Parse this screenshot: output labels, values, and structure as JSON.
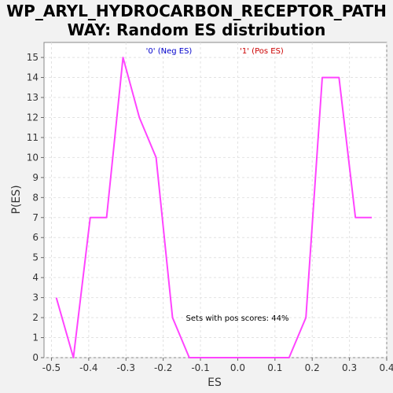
{
  "chart_data": {
    "type": "line",
    "title_line1": "WP_ARYL_HYDROCARBON_RECEPTOR_PATH",
    "title_line2": "WAY: Random ES distribution",
    "xlabel": "ES",
    "ylabel": "P(ES)",
    "xlim": [
      -0.52,
      0.4
    ],
    "ylim": [
      0,
      15.75
    ],
    "x_ticks": [
      -0.5,
      -0.4,
      -0.3,
      -0.2,
      -0.1,
      0.0,
      0.1,
      0.2,
      0.3,
      0.4
    ],
    "x_tick_labels": [
      "-0.5",
      "-0.4",
      "-0.3",
      "-0.2",
      "-0.1",
      "0.0",
      "0.1",
      "0.2",
      "0.3",
      "0.4"
    ],
    "y_ticks": [
      0,
      1,
      2,
      3,
      4,
      5,
      6,
      7,
      8,
      9,
      10,
      11,
      12,
      13,
      14,
      15
    ],
    "grid": true,
    "legend": {
      "placement": "top",
      "entries": [
        {
          "label": "'0' (Neg ES)",
          "color": "#0000cc"
        },
        {
          "label": "'1' (Pos ES)",
          "color": "#cc0000"
        }
      ]
    },
    "annotation": "Sets with pos scores: 44%",
    "series": [
      {
        "color": "#ff44ff",
        "x": [
          -0.487,
          -0.441,
          -0.396,
          -0.352,
          -0.308,
          -0.264,
          -0.219,
          -0.175,
          -0.13,
          -0.087,
          -0.043,
          0.0,
          0.044,
          0.089,
          0.138,
          0.183,
          0.227,
          0.272,
          0.316,
          0.36
        ],
        "y": [
          3,
          0,
          7,
          7,
          15,
          12,
          10,
          2,
          0,
          0,
          0,
          0,
          0,
          0,
          0,
          2,
          14,
          14,
          7,
          7
        ]
      }
    ]
  }
}
